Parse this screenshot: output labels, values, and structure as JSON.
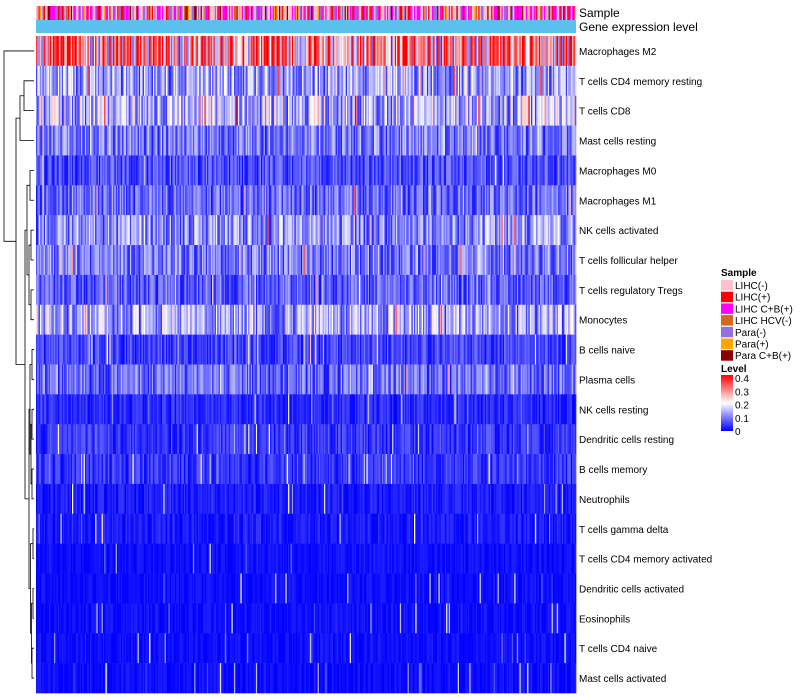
{
  "chart_data": {
    "type": "heatmap",
    "title": "",
    "annotation_tracks": [
      "Sample",
      "Gene expression level"
    ],
    "rows": [
      {
        "name": "Macrophages M2",
        "typical_level": 0.28
      },
      {
        "name": "T cells CD4 memory resting",
        "typical_level": 0.12
      },
      {
        "name": "T cells CD8",
        "typical_level": 0.14
      },
      {
        "name": "Mast cells resting",
        "typical_level": 0.09
      },
      {
        "name": "Macrophages M0",
        "typical_level": 0.06
      },
      {
        "name": "Macrophages M1",
        "typical_level": 0.08
      },
      {
        "name": "NK cells activated",
        "typical_level": 0.11
      },
      {
        "name": "T cells follicular helper",
        "typical_level": 0.09
      },
      {
        "name": "T cells regulatory  Tregs",
        "typical_level": 0.07
      },
      {
        "name": "Monocytes",
        "typical_level": 0.13
      },
      {
        "name": "B cells naive",
        "typical_level": 0.05
      },
      {
        "name": "Plasma cells",
        "typical_level": 0.08
      },
      {
        "name": "NK cells resting",
        "typical_level": 0.03
      },
      {
        "name": "Dendritic cells resting",
        "typical_level": 0.04
      },
      {
        "name": "B cells memory",
        "typical_level": 0.04
      },
      {
        "name": "Neutrophils",
        "typical_level": 0.02
      },
      {
        "name": "T cells gamma delta",
        "typical_level": 0.02
      },
      {
        "name": "T cells CD4 memory activated",
        "typical_level": 0.01
      },
      {
        "name": "Dendritic cells activated",
        "typical_level": 0.01
      },
      {
        "name": "Eosinophils",
        "typical_level": 0.01
      },
      {
        "name": "T cells CD4 naive",
        "typical_level": 0.01
      },
      {
        "name": "Mast cells activated",
        "typical_level": 0.01
      }
    ],
    "legend_sample": {
      "title": "Sample",
      "entries": [
        {
          "label": "LIHC(-)",
          "color": "#FFC0CB"
        },
        {
          "label": "LIHC(+)",
          "color": "#FF0000"
        },
        {
          "label": "LIHC C+B(+)",
          "color": "#FF00FF"
        },
        {
          "label": "LIHC HCV(-)",
          "color": "#D2691E"
        },
        {
          "label": "Para(-)",
          "color": "#9370DB"
        },
        {
          "label": "Para(+)",
          "color": "#FFA500"
        },
        {
          "label": "Para C+B(+)",
          "color": "#8B0000"
        }
      ]
    },
    "legend_level": {
      "title": "Level",
      "range": [
        0,
        0.4
      ],
      "ticks": [
        "0.4",
        "0.3",
        "0.2",
        "0.1",
        "0"
      ],
      "tick_values": [
        0.4,
        0.3,
        0.2,
        0.1,
        0
      ],
      "color_low": "#0000FF",
      "color_mid": "#FFFFFF",
      "color_high": "#FF0000",
      "mid_value": 0.2
    },
    "expression_track_color": "#5BC0EB",
    "n_samples": 420
  }
}
